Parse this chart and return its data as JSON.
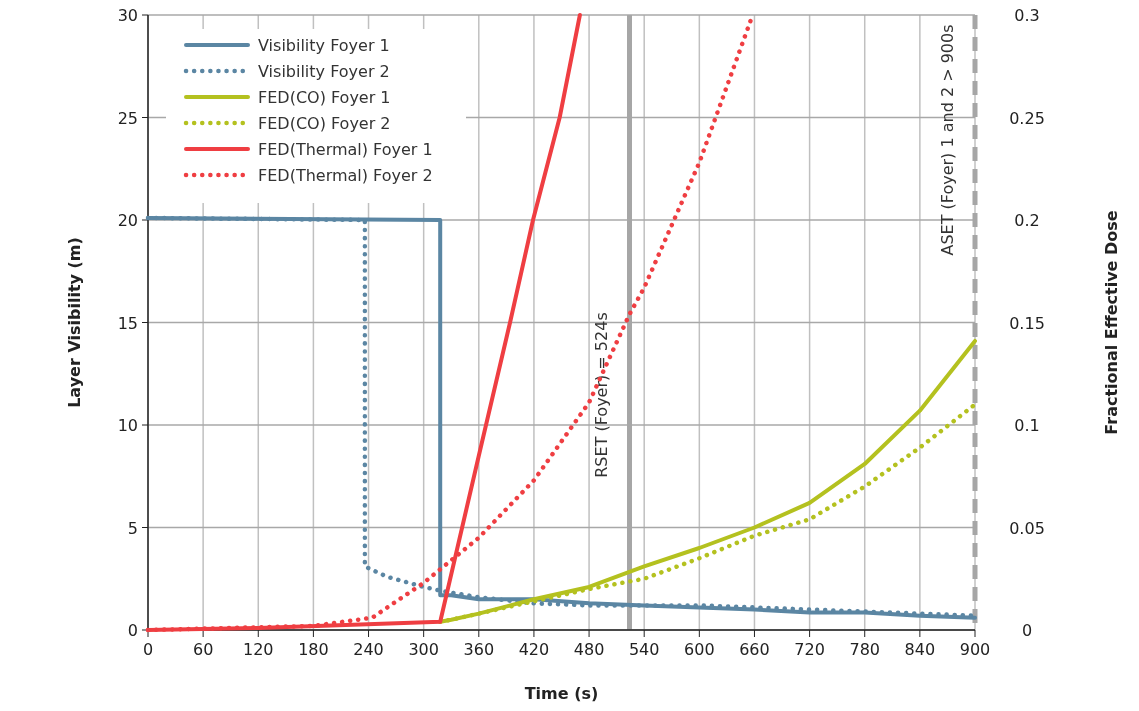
{
  "chart_data": {
    "type": "line",
    "xlabel": "Time (s)",
    "ylabel": "Layer Visibility (m)",
    "y2label": "Fractional Effective Dose",
    "xlim": [
      0,
      900
    ],
    "xticks": [
      0,
      60,
      120,
      180,
      240,
      300,
      360,
      420,
      480,
      540,
      600,
      660,
      720,
      780,
      840,
      900
    ],
    "ylim": [
      0,
      30
    ],
    "yticks": [
      0,
      5,
      10,
      15,
      20,
      25,
      30
    ],
    "y2lim": [
      0,
      0.3
    ],
    "y2ticks": [
      0,
      0.05,
      0.1,
      0.15,
      0.2,
      0.25,
      0.3
    ],
    "grid": true,
    "legend": "top left",
    "marker": "none",
    "series": [
      {
        "name": "Visibility Foyer 1",
        "color": "#5b86a3",
        "line_style": "solid",
        "x": [
          0,
          318,
          318,
          330,
          360,
          420,
          480,
          540,
          600,
          660,
          720,
          780,
          840,
          900
        ],
        "values": [
          20.1,
          20,
          1.7,
          1.7,
          1.5,
          1.5,
          1.3,
          1.2,
          1.1,
          1,
          0.85,
          0.85,
          0.7,
          0.6
        ]
      },
      {
        "name": "Visibility Foyer 2",
        "color": "#5b86a3",
        "line_style": "dotted",
        "x": [
          0,
          236,
          236,
          260,
          300,
          320,
          360,
          420,
          480,
          540,
          600,
          660,
          720,
          780,
          840,
          900
        ],
        "values": [
          20.1,
          20,
          3.1,
          2.6,
          2.1,
          1.9,
          1.6,
          1.3,
          1.2,
          1.2,
          1.2,
          1.1,
          1,
          0.9,
          0.8,
          0.7
        ]
      },
      {
        "name": "FED(CO) Foyer 1",
        "color": "#b4c11f",
        "line_style": "solid",
        "axis": "y2",
        "x": [
          318,
          330,
          360,
          420,
          480,
          540,
          600,
          660,
          720,
          780,
          840,
          900
        ],
        "values": [
          0.004,
          0.005,
          0.008,
          0.015,
          0.021,
          0.031,
          0.04,
          0.05,
          0.062,
          0.081,
          0.107,
          0.141
        ]
      },
      {
        "name": "FED(CO) Foyer 2",
        "color": "#b4c11f",
        "line_style": "dotted",
        "axis": "y2",
        "x": [
          318,
          330,
          360,
          420,
          480,
          540,
          600,
          660,
          720,
          780,
          840,
          900
        ],
        "values": [
          0.004,
          0.005,
          0.008,
          0.014,
          0.02,
          0.025,
          0.035,
          0.046,
          0.054,
          0.07,
          0.089,
          0.11
        ]
      },
      {
        "name": "FED(Thermal) Foyer 1",
        "color": "#ef3e42",
        "line_style": "solid",
        "axis": "y2",
        "x": [
          0,
          120,
          318,
          360,
          394,
          419,
          448,
          470
        ],
        "values": [
          0,
          0.001,
          0.004,
          0.085,
          0.15,
          0.2,
          0.25,
          0.3
        ]
      },
      {
        "name": "FED(Thermal) Foyer 2",
        "color": "#ef3e42",
        "line_style": "dotted",
        "axis": "y2",
        "x": [
          0,
          180,
          244,
          300,
          360,
          420,
          480,
          524,
          540,
          600,
          658
        ],
        "values": [
          0,
          0.002,
          0.006,
          0.023,
          0.045,
          0.073,
          0.111,
          0.154,
          0.167,
          0.228,
          0.3
        ]
      }
    ],
    "ref_lines": [
      {
        "axis": "x",
        "value": 524,
        "label": "RSET (Foyer) = 524s",
        "color": "#a6a6a6",
        "line_style": "solid"
      },
      {
        "axis": "x",
        "value": 900,
        "label": "ASET (Foyer) 1 and 2 > 900s",
        "color": "#a6a6a6",
        "line_style": "dashed"
      }
    ]
  }
}
